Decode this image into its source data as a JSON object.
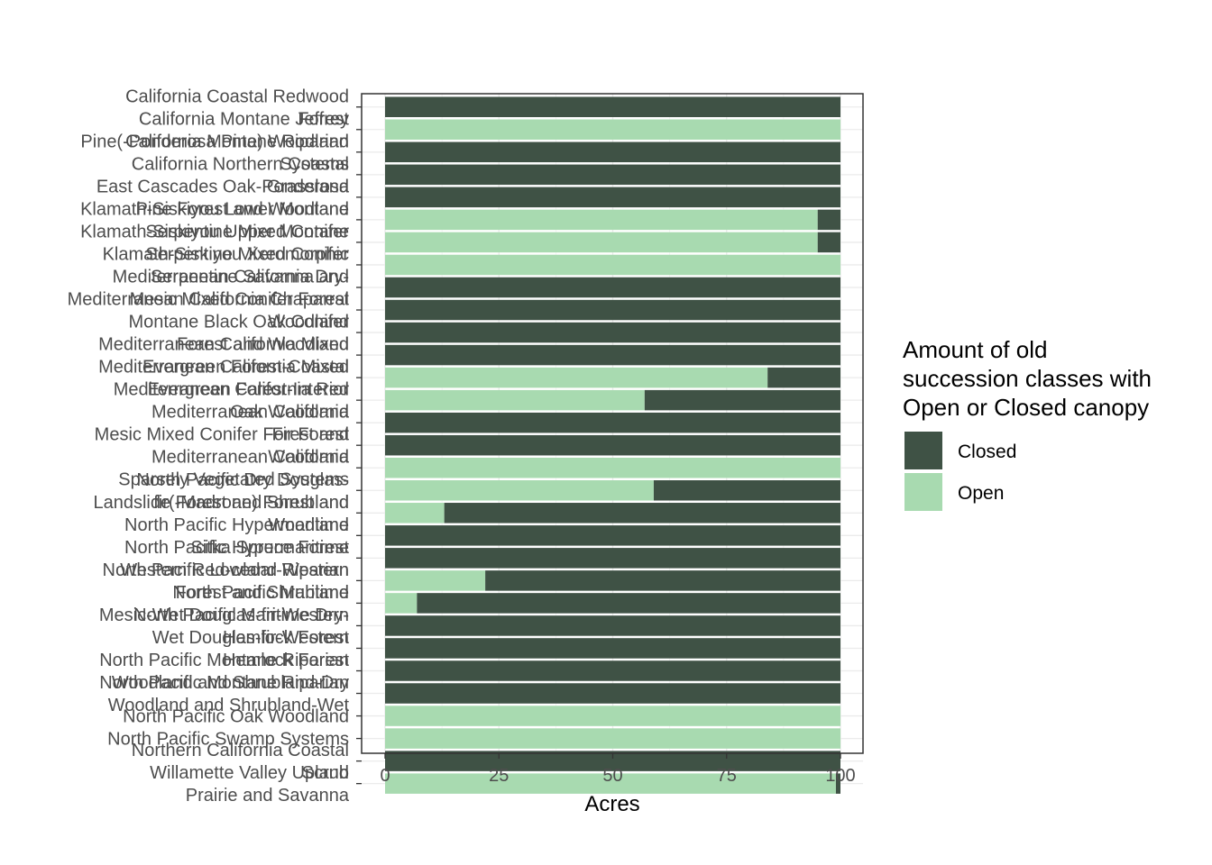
{
  "chart_data": {
    "type": "bar",
    "orientation": "horizontal",
    "stacked": true,
    "xlabel": "Acres",
    "ylabel": "",
    "xlim": [
      0,
      100
    ],
    "x_ticks": [
      "0",
      "25",
      "50",
      "75",
      "100"
    ],
    "grid": true,
    "legend": {
      "title_lines": [
        "Amount of old",
        "succession classes with",
        "Open or Closed canopy"
      ],
      "position": "right",
      "entries": [
        "Closed",
        "Open"
      ]
    },
    "categories": [
      [
        "California Coastal Redwood",
        "Forest"
      ],
      [
        "California Montane Jeffrey",
        "Pine(-Ponderosa Pine) Woodland"
      ],
      [
        "California Montane Riparian",
        "Systems"
      ],
      [
        "California Northern Coastal",
        "Grassland"
      ],
      [
        "East Cascades Oak-Ponderosa",
        "Pine Forest and Woodland"
      ],
      [
        "Klamath-Siskiyou Lower Montane",
        "Serpentine Mixed Conifer"
      ],
      [
        "Klamath-Siskiyou Upper Montane",
        "Serpentine Mixed Conifer"
      ],
      [
        "Klamath-Siskiyou Xeromorphic",
        "Serpentine Savanna and"
      ],
      [
        "Mediterranean California Dry-",
        "Mesic Mixed Conifer Forest"
      ],
      [
        "Mediterranean California Chaparral",
        "Woodland"
      ],
      [
        "Montane Black Oak Conifer",
        "Forest and Woodland"
      ],
      [
        "Mediterranean California Mixed",
        "Evergreen Forest-Coastal"
      ],
      [
        "Mediterranean California Mixed",
        "Evergreen Forest-Interior"
      ],
      [
        "Mediterranean California Red",
        "Oak Woodland"
      ],
      [
        "Mediterranean California",
        "Fir Forest"
      ],
      [
        "Mesic Mixed Conifer Forest and",
        "Woodland"
      ],
      [
        "Mediterranean California",
        "Sparsely Vegetated Systems"
      ],
      [
        "North Pacific Dry Douglas-",
        "fir(-Madrone) Forest and"
      ],
      [
        "Landslide Forest and Shrubland",
        "Woodland"
      ],
      [
        "North Pacific Hypermaritime",
        "Sitka Spruce Forest"
      ],
      [
        "North Pacific Hypermaritime",
        "Western Red-cedar-Western"
      ],
      [
        "North Pacific Lowland Riparian",
        "Forest and Shrubland"
      ],
      [
        "North Pacific Maritime",
        "Mesic-Wet Douglas-fir-Western"
      ],
      [
        "North Pacific Maritime Dry-",
        "Hemlock Forest"
      ],
      [
        "Wet Douglas-fir-Western",
        "Hemlock Forest"
      ],
      [
        "North Pacific Montane Riparian",
        "Woodland and Shrubland-Dry"
      ],
      [
        "North Pacific Montane Riparian",
        "Woodland and Shrubland-Wet"
      ],
      [
        "North Pacific Oak Woodland",
        ""
      ],
      [
        "North Pacific Swamp Systems",
        ""
      ],
      [
        "Northern California Coastal",
        "Scrub"
      ],
      [
        "Willamette Valley Upland",
        "Prairie and Savanna"
      ]
    ],
    "series": [
      {
        "name": "Open",
        "color": "#a8dab0",
        "values": [
          0,
          100,
          0,
          0,
          0,
          95,
          95,
          100,
          0,
          0,
          0,
          0,
          84,
          57,
          0,
          0,
          100,
          59,
          13,
          0,
          0,
          22,
          7,
          0,
          0,
          0,
          0,
          100,
          100,
          0,
          99
        ]
      },
      {
        "name": "Closed",
        "color": "#3f5245",
        "values": [
          100,
          0,
          100,
          100,
          100,
          5,
          5,
          0,
          100,
          100,
          100,
          100,
          16,
          43,
          100,
          100,
          0,
          41,
          87,
          100,
          100,
          78,
          93,
          100,
          100,
          100,
          100,
          0,
          0,
          100,
          1
        ]
      }
    ]
  }
}
